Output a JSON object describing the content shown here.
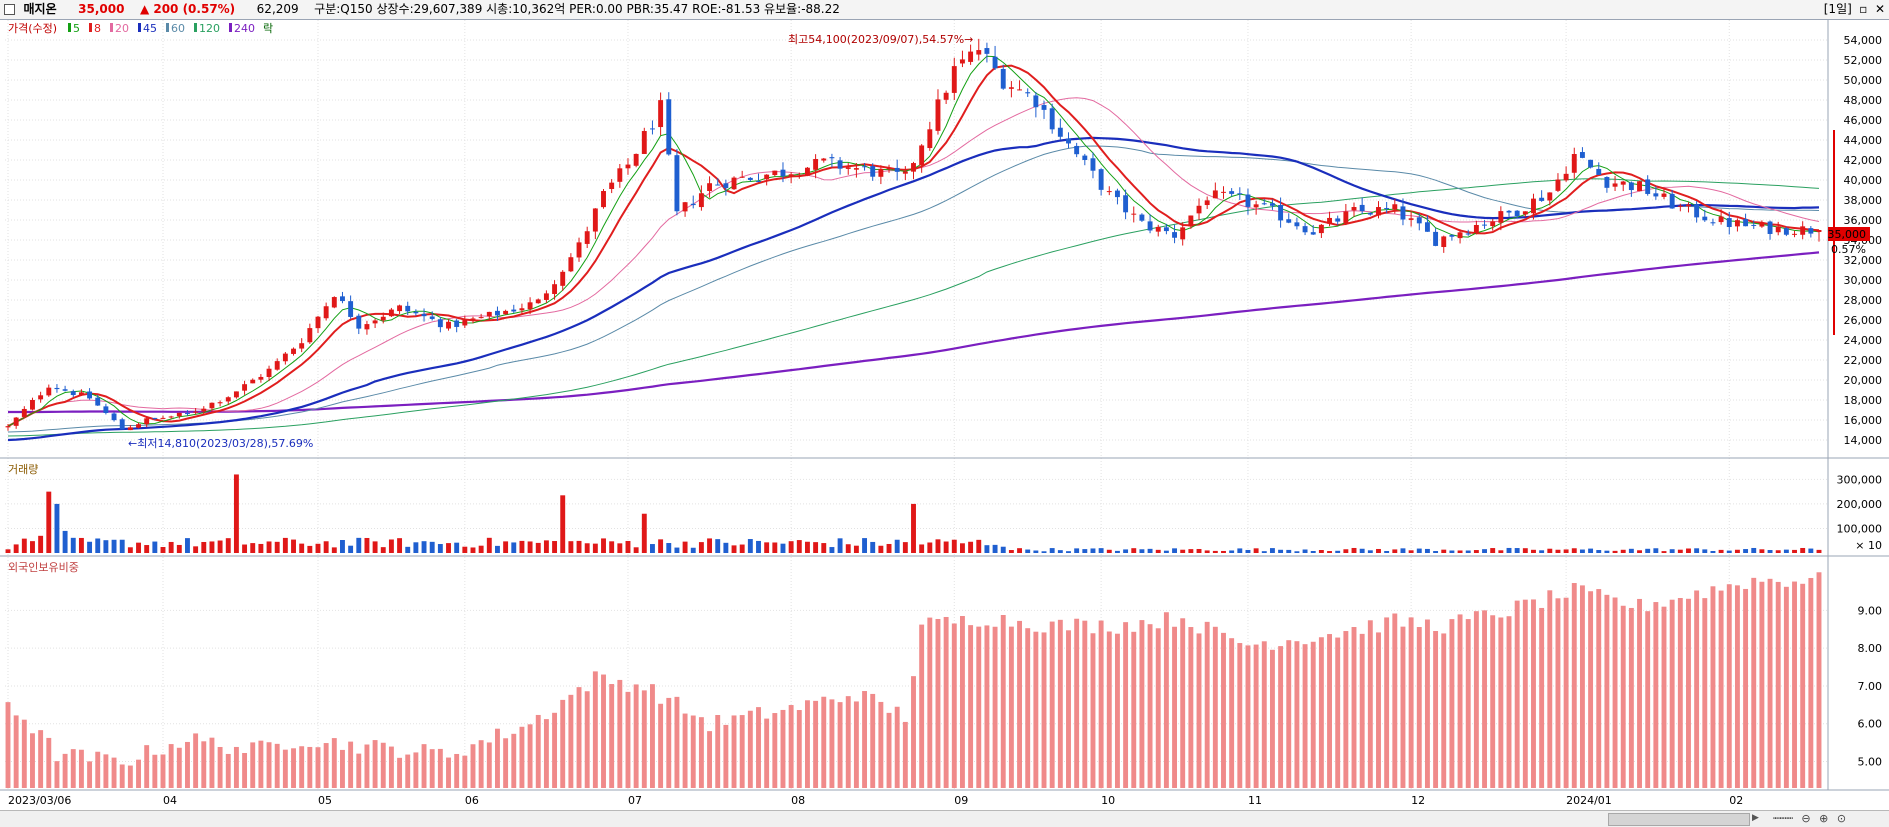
{
  "header": {
    "name": "매지온",
    "price": "35,000",
    "change": "▲ 200 (0.57%)",
    "volume": "62,209",
    "info": "구분:Q150 상장수:29,607,389 시총:10,362억 PER:0.00 PBR:35.47 ROE:-81.53 유보율:-88.22",
    "period": "[1일]"
  },
  "legend": {
    "price": "가격(수정)",
    "ma": [
      {
        "label": "5",
        "color": "#14a014"
      },
      {
        "label": "8",
        "color": "#e01e1e"
      },
      {
        "label": "20",
        "color": "#e36aa0"
      },
      {
        "label": "45",
        "color": "#1a2ebc"
      },
      {
        "label": "60",
        "color": "#5a8aa8"
      },
      {
        "label": "120",
        "color": "#2aa060"
      },
      {
        "label": "240",
        "color": "#7b1fc0"
      }
    ],
    "extra": "락"
  },
  "annotations": {
    "high": "최고54,100(2023/09/07),54.57%→",
    "low": "←최저14,810(2023/03/28),57.69%"
  },
  "current": {
    "price": "35,000",
    "pct": "0.57%"
  },
  "panels": {
    "volume_title": "거래량",
    "foreign_title": "외국인보유비중"
  },
  "chart_data": [
    {
      "type": "candlestick",
      "title": "",
      "ylim": [
        13000,
        55500
      ],
      "y_ticks": [
        14000,
        16000,
        18000,
        20000,
        22000,
        24000,
        26000,
        28000,
        30000,
        32000,
        34000,
        36000,
        38000,
        40000,
        42000,
        44000,
        46000,
        48000,
        50000,
        52000,
        54000
      ],
      "x_ticks": [
        {
          "label": "2023/03/06",
          "index": 0
        },
        {
          "label": "04",
          "index": 19
        },
        {
          "label": "05",
          "index": 38
        },
        {
          "label": "06",
          "index": 56
        },
        {
          "label": "07",
          "index": 76
        },
        {
          "label": "08",
          "index": 96
        },
        {
          "label": "09",
          "index": 116
        },
        {
          "label": "10",
          "index": 134
        },
        {
          "label": "11",
          "index": 152
        },
        {
          "label": "12",
          "index": 172
        },
        {
          "label": "2024/01",
          "index": 191
        },
        {
          "label": "02",
          "index": 211
        }
      ],
      "n": 223,
      "anchors": [
        [
          0,
          15300
        ],
        [
          5,
          19500
        ],
        [
          10,
          18200
        ],
        [
          14,
          15100
        ],
        [
          17,
          16000
        ],
        [
          22,
          16600
        ],
        [
          27,
          18400
        ],
        [
          32,
          21000
        ],
        [
          36,
          24000
        ],
        [
          40,
          28700
        ],
        [
          43,
          25500
        ],
        [
          48,
          27200
        ],
        [
          54,
          25400
        ],
        [
          58,
          26200
        ],
        [
          65,
          27800
        ],
        [
          70,
          33400
        ],
        [
          73,
          38500
        ],
        [
          76,
          41500
        ],
        [
          80,
          47200
        ],
        [
          82,
          36500
        ],
        [
          86,
          39500
        ],
        [
          90,
          40200
        ],
        [
          95,
          40800
        ],
        [
          100,
          41700
        ],
        [
          105,
          41000
        ],
        [
          110,
          40200
        ],
        [
          116,
          51000
        ],
        [
          119,
          53100
        ],
        [
          122,
          50000
        ],
        [
          126,
          48000
        ],
        [
          130,
          43500
        ],
        [
          135,
          38500
        ],
        [
          139,
          35600
        ],
        [
          143,
          34500
        ],
        [
          147,
          38400
        ],
        [
          151,
          38000
        ],
        [
          155,
          36800
        ],
        [
          160,
          34900
        ],
        [
          165,
          36800
        ],
        [
          170,
          37000
        ],
        [
          175,
          34000
        ],
        [
          180,
          35500
        ],
        [
          185,
          37000
        ],
        [
          189,
          38800
        ],
        [
          192,
          42500
        ],
        [
          196,
          39900
        ],
        [
          200,
          39300
        ],
        [
          205,
          37200
        ],
        [
          210,
          35800
        ],
        [
          215,
          35200
        ],
        [
          222,
          35000
        ]
      ],
      "moving_averages": [
        "5",
        "8",
        "20",
        "45",
        "60",
        "120",
        "240"
      ]
    },
    {
      "type": "bar",
      "title": "거래량",
      "ylim": [
        0,
        330000
      ],
      "y_ticks": [
        100000,
        200000,
        300000
      ],
      "spikes": [
        [
          0,
          15000
        ],
        [
          1,
          35000
        ],
        [
          4,
          70000
        ],
        [
          5,
          250000
        ],
        [
          6,
          200000
        ],
        [
          7,
          90000
        ],
        [
          28,
          320000
        ],
        [
          68,
          235000
        ],
        [
          78,
          160000
        ],
        [
          111,
          200000
        ]
      ],
      "x10_label": "× 10"
    },
    {
      "type": "bar",
      "title": "외국인보유비중",
      "ylim": [
        4.3,
        10.2
      ],
      "y_ticks": [
        5.0,
        6.0,
        7.0,
        8.0,
        9.0
      ],
      "anchors": [
        [
          0,
          6.6
        ],
        [
          6,
          5.2
        ],
        [
          14,
          5.0
        ],
        [
          22,
          5.6
        ],
        [
          30,
          5.3
        ],
        [
          36,
          5.6
        ],
        [
          44,
          5.4
        ],
        [
          54,
          5.2
        ],
        [
          64,
          6.0
        ],
        [
          72,
          7.2
        ],
        [
          78,
          7.0
        ],
        [
          86,
          6.0
        ],
        [
          96,
          6.4
        ],
        [
          104,
          6.8
        ],
        [
          110,
          6.2
        ],
        [
          112,
          8.6
        ],
        [
          120,
          8.8
        ],
        [
          128,
          8.6
        ],
        [
          136,
          8.6
        ],
        [
          144,
          8.8
        ],
        [
          148,
          8.4
        ],
        [
          152,
          8.1
        ],
        [
          160,
          8.3
        ],
        [
          170,
          8.7
        ],
        [
          176,
          8.6
        ],
        [
          184,
          9.0
        ],
        [
          192,
          9.5
        ],
        [
          200,
          9.1
        ],
        [
          208,
          9.5
        ],
        [
          214,
          9.8
        ],
        [
          222,
          9.8
        ]
      ]
    }
  ]
}
